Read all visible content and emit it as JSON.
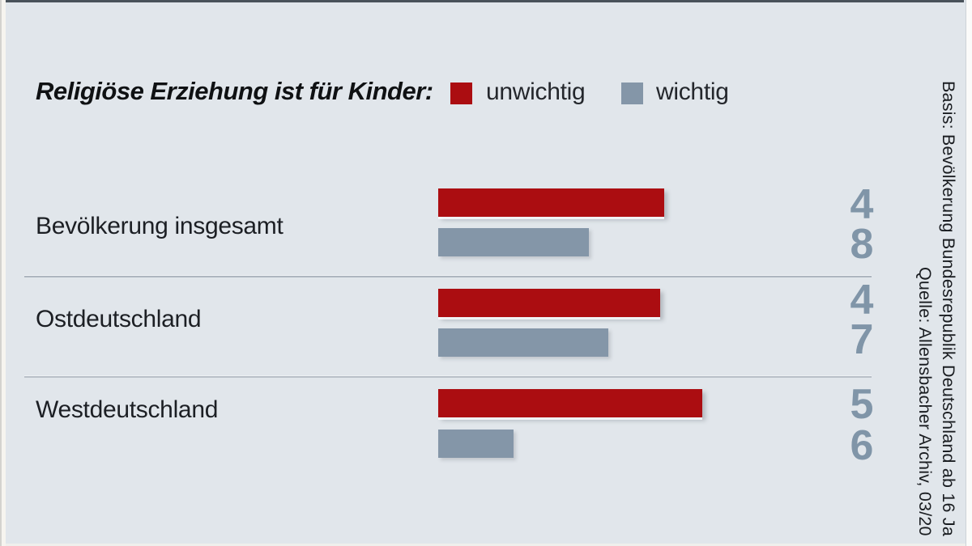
{
  "title": "Religiöse Erziehung ist für Kinder:",
  "legend": {
    "items": [
      {
        "label": "unwichtig",
        "color": "#ab0d11"
      },
      {
        "label": "wichtig",
        "color": "#8496a8"
      }
    ]
  },
  "groups": [
    {
      "label": "Bevölkerung insgesamt",
      "value_label": "48",
      "display": [
        "4",
        "8"
      ]
    },
    {
      "label": "Ostdeutschland",
      "value_label": "47",
      "display": [
        "4",
        "7"
      ]
    },
    {
      "label": "Westdeutschland",
      "value_label": "56",
      "display": [
        "5",
        "6"
      ]
    }
  ],
  "source": {
    "basis": "Basis: Bevölkerung Bundesrepublik Deutschland ab 16 Ja",
    "quelle": "Quelle: Allensbacher Archiv, 03/20"
  },
  "colors": {
    "background": "#e1e6eb",
    "bar_unwichtig": "#ab0d11",
    "bar_wichtig": "#8496a8",
    "value_text": "#8095a8",
    "separator": "#aeb6bf"
  },
  "chart_data": {
    "type": "bar",
    "orientation": "horizontal",
    "title": "Religiöse Erziehung ist für Kinder:",
    "categories": [
      "Bevölkerung insgesamt",
      "Ostdeutschland",
      "Westdeutschland"
    ],
    "series": [
      {
        "name": "unwichtig",
        "color": "#ab0d11",
        "values": [
          48,
          47,
          56
        ],
        "labels_shown": [
          "48",
          "47",
          "56"
        ]
      },
      {
        "name": "wichtig",
        "color": "#8496a8",
        "values": [
          32,
          36,
          16
        ],
        "estimated_from_bar_length": true
      }
    ],
    "xlim": [
      0,
      60
    ],
    "grid": false,
    "legend_position": "top"
  }
}
